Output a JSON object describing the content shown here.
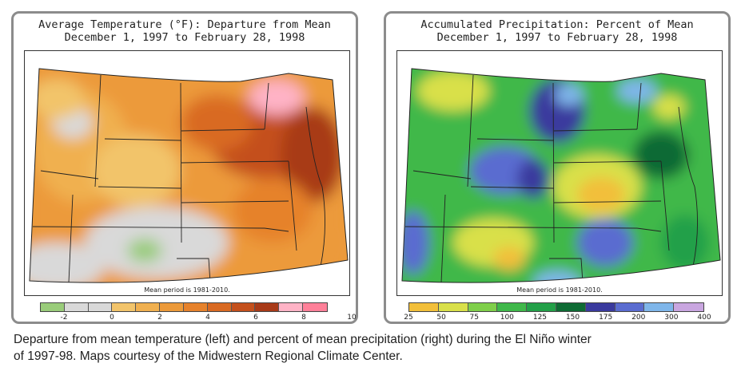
{
  "left_map": {
    "title_line1": "Average Temperature (°F): Departure from Mean",
    "title_line2": "December 1, 1997 to February 28, 1998",
    "mean_note": "Mean period is 1981-2010.",
    "legend": {
      "colors": [
        "#99cc7a",
        "#d9d9d9",
        "#d9d9d9",
        "#f2c46b",
        "#f0b050",
        "#ec9a3a",
        "#e6822c",
        "#d96a22",
        "#c4501c",
        "#a83a18",
        "#ffb3c6",
        "#ff8099"
      ],
      "ticks": [
        "-2",
        "0",
        "2",
        "4",
        "6",
        "8",
        "10"
      ],
      "tick_index": [
        1,
        3,
        5,
        7,
        9,
        11,
        13
      ]
    }
  },
  "right_map": {
    "title_line1": "Accumulated Precipitation: Percent of Mean",
    "title_line2": "December 1, 1997 to February 28, 1998",
    "mean_note": "Mean period is 1981-2010.",
    "legend": {
      "colors": [
        "#f2bf3a",
        "#d9e04a",
        "#7fcf4a",
        "#3fb84a",
        "#22a048",
        "#0e6b34",
        "#3a3a9e",
        "#5a6cd0",
        "#7fb6ea",
        "#c9a6e0"
      ],
      "ticks": [
        "25",
        "50",
        "75",
        "100",
        "125",
        "150",
        "175",
        "200",
        "300",
        "400"
      ],
      "tick_index": [
        0,
        1,
        2,
        3,
        4,
        5,
        6,
        7,
        8,
        9
      ]
    }
  },
  "caption": {
    "line1": "Departure from mean temperature (left) and percent of mean precipitation (right) during the El Niño winter",
    "line2": "of 1997-98. Maps courtesy of the Midwestern Regional Climate Center."
  }
}
